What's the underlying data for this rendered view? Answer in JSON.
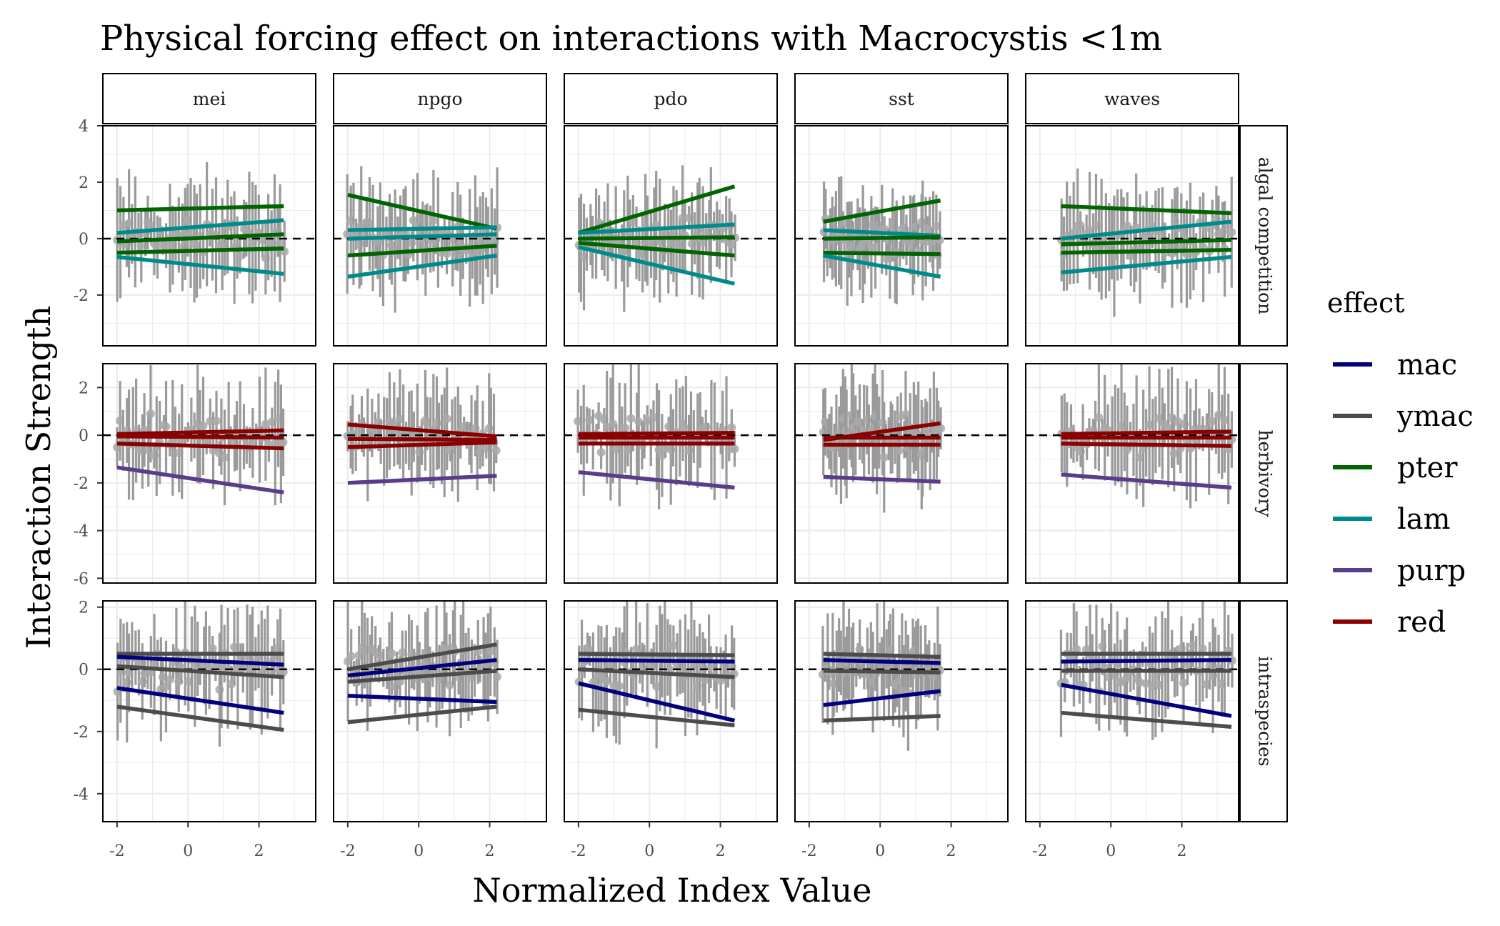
{
  "chart_data": {
    "type": "line",
    "title": "Physical forcing effect on interactions with Macrocystis <1m",
    "xlabel": "Normalized Index Value",
    "ylabel": "Interaction Strength",
    "legend": {
      "title": "effect",
      "placement": "right"
    },
    "series": [
      {
        "name": "mac",
        "color": "#00007f"
      },
      {
        "name": "ymac",
        "color": "#4c4c4c"
      },
      {
        "name": "pter",
        "color": "#006400"
      },
      {
        "name": "lam",
        "color": "#008b8b"
      },
      {
        "name": "purp",
        "color": "#5a3d8a"
      },
      {
        "name": "red",
        "color": "#8b0000"
      }
    ],
    "x_panels": [
      "mei",
      "npgo",
      "pdo",
      "sst",
      "waves"
    ],
    "y_panels": [
      "algal competition",
      "herbivory",
      "intraspecies"
    ],
    "xlim": [
      -2.4,
      3.6
    ],
    "x_ticks": [
      -2,
      0,
      2
    ],
    "x_tick_labels": [
      "-2",
      "0",
      "2"
    ],
    "x_ranges": {
      "mei": [
        -2.0,
        2.7
      ],
      "npgo": [
        -2.0,
        2.2
      ],
      "pdo": [
        -2.0,
        2.4
      ],
      "sst": [
        -1.6,
        1.7
      ],
      "waves": [
        -1.4,
        3.4
      ]
    },
    "rows": [
      {
        "name": "algal competition",
        "ylim": [
          -3.8,
          4.0
        ],
        "y_ticks": [
          -2,
          0,
          2,
          4
        ],
        "y_tick_labels": [
          "-2",
          "0",
          "2",
          "4"
        ],
        "reference_line": 0,
        "lines": {
          "mei": [
            {
              "effect": "pter",
              "y": [
                1.0,
                1.15
              ]
            },
            {
              "effect": "lam",
              "y": [
                0.2,
                0.65
              ]
            },
            {
              "effect": "pter",
              "y": [
                -0.1,
                0.15
              ]
            },
            {
              "effect": "pter",
              "y": [
                -0.5,
                -0.35
              ]
            },
            {
              "effect": "lam",
              "y": [
                -0.65,
                -1.25
              ]
            }
          ],
          "npgo": [
            {
              "effect": "pter",
              "y": [
                1.55,
                0.35
              ]
            },
            {
              "effect": "lam",
              "y": [
                0.3,
                0.4
              ]
            },
            {
              "effect": "lam",
              "y": [
                0.0,
                0.15
              ]
            },
            {
              "effect": "pter",
              "y": [
                -0.6,
                -0.25
              ]
            },
            {
              "effect": "lam",
              "y": [
                -1.35,
                -0.6
              ]
            }
          ],
          "pdo": [
            {
              "effect": "pter",
              "y": [
                0.2,
                1.85
              ]
            },
            {
              "effect": "lam",
              "y": [
                0.2,
                0.5
              ]
            },
            {
              "effect": "pter",
              "y": [
                0.0,
                0.05
              ]
            },
            {
              "effect": "pter",
              "y": [
                -0.15,
                -0.6
              ]
            },
            {
              "effect": "lam",
              "y": [
                -0.3,
                -1.6
              ]
            }
          ],
          "sst": [
            {
              "effect": "pter",
              "y": [
                0.6,
                1.35
              ]
            },
            {
              "effect": "lam",
              "y": [
                0.3,
                0.1
              ]
            },
            {
              "effect": "pter",
              "y": [
                0.0,
                0.05
              ]
            },
            {
              "effect": "pter",
              "y": [
                -0.5,
                -0.55
              ]
            },
            {
              "effect": "lam",
              "y": [
                -0.6,
                -1.35
              ]
            }
          ],
          "waves": [
            {
              "effect": "pter",
              "y": [
                1.15,
                0.9
              ]
            },
            {
              "effect": "lam",
              "y": [
                0.0,
                0.6
              ]
            },
            {
              "effect": "pter",
              "y": [
                -0.2,
                -0.05
              ]
            },
            {
              "effect": "pter",
              "y": [
                -0.5,
                -0.4
              ]
            },
            {
              "effect": "lam",
              "y": [
                -1.2,
                -0.65
              ]
            }
          ]
        },
        "point_cloud": {
          "spread": 0.75,
          "bar_extent": 1.8
        }
      },
      {
        "name": "herbivory",
        "ylim": [
          -6.2,
          3.0
        ],
        "y_ticks": [
          -6,
          -4,
          -2,
          0,
          2
        ],
        "y_tick_labels": [
          "-6",
          "-4",
          "-2",
          "0",
          "2"
        ],
        "reference_line": 0,
        "lines": {
          "mei": [
            {
              "effect": "red",
              "y": [
                0.05,
                0.2
              ]
            },
            {
              "effect": "red",
              "y": [
                -0.05,
                -0.1
              ]
            },
            {
              "effect": "red",
              "y": [
                -0.35,
                -0.55
              ]
            },
            {
              "effect": "purp",
              "y": [
                -1.35,
                -2.4
              ]
            }
          ],
          "npgo": [
            {
              "effect": "red",
              "y": [
                0.45,
                -0.05
              ]
            },
            {
              "effect": "red",
              "y": [
                -0.15,
                -0.2
              ]
            },
            {
              "effect": "red",
              "y": [
                -0.5,
                -0.3
              ]
            },
            {
              "effect": "purp",
              "y": [
                -2.0,
                -1.7
              ]
            }
          ],
          "pdo": [
            {
              "effect": "red",
              "y": [
                0.05,
                0.1
              ]
            },
            {
              "effect": "red",
              "y": [
                -0.1,
                -0.1
              ]
            },
            {
              "effect": "red",
              "y": [
                -0.35,
                -0.35
              ]
            },
            {
              "effect": "purp",
              "y": [
                -1.55,
                -2.2
              ]
            }
          ],
          "sst": [
            {
              "effect": "red",
              "y": [
                -0.2,
                0.5
              ]
            },
            {
              "effect": "red",
              "y": [
                -0.1,
                -0.1
              ]
            },
            {
              "effect": "red",
              "y": [
                -0.4,
                -0.4
              ]
            },
            {
              "effect": "purp",
              "y": [
                -1.75,
                -1.95
              ]
            }
          ],
          "waves": [
            {
              "effect": "red",
              "y": [
                0.05,
                0.15
              ]
            },
            {
              "effect": "red",
              "y": [
                -0.1,
                -0.1
              ]
            },
            {
              "effect": "red",
              "y": [
                -0.35,
                -0.45
              ]
            },
            {
              "effect": "purp",
              "y": [
                -1.65,
                -2.2
              ]
            }
          ]
        },
        "point_cloud": {
          "spread": 0.9,
          "bar_extent": 2.2
        }
      },
      {
        "name": "intraspecies",
        "ylim": [
          -4.9,
          2.2
        ],
        "y_ticks": [
          -4,
          -2,
          0,
          2
        ],
        "y_tick_labels": [
          "-4",
          "-2",
          "0",
          "2"
        ],
        "reference_line": 0,
        "lines": {
          "mei": [
            {
              "effect": "ymac",
              "y": [
                0.5,
                0.5
              ]
            },
            {
              "effect": "mac",
              "y": [
                0.4,
                0.15
              ]
            },
            {
              "effect": "ymac",
              "y": [
                0.1,
                -0.25
              ]
            },
            {
              "effect": "mac",
              "y": [
                -0.6,
                -1.4
              ]
            },
            {
              "effect": "ymac",
              "y": [
                -1.2,
                -1.95
              ]
            }
          ],
          "npgo": [
            {
              "effect": "ymac",
              "y": [
                0.0,
                0.8
              ]
            },
            {
              "effect": "mac",
              "y": [
                -0.2,
                0.3
              ]
            },
            {
              "effect": "ymac",
              "y": [
                -0.4,
                -0.05
              ]
            },
            {
              "effect": "mac",
              "y": [
                -0.85,
                -1.05
              ]
            },
            {
              "effect": "ymac",
              "y": [
                -1.7,
                -1.2
              ]
            }
          ],
          "pdo": [
            {
              "effect": "ymac",
              "y": [
                0.5,
                0.45
              ]
            },
            {
              "effect": "mac",
              "y": [
                0.3,
                0.25
              ]
            },
            {
              "effect": "ymac",
              "y": [
                0.0,
                -0.25
              ]
            },
            {
              "effect": "mac",
              "y": [
                -0.45,
                -1.65
              ]
            },
            {
              "effect": "ymac",
              "y": [
                -1.3,
                -1.8
              ]
            }
          ],
          "sst": [
            {
              "effect": "ymac",
              "y": [
                0.5,
                0.4
              ]
            },
            {
              "effect": "mac",
              "y": [
                0.3,
                0.2
              ]
            },
            {
              "effect": "ymac",
              "y": [
                -0.05,
                -0.1
              ]
            },
            {
              "effect": "mac",
              "y": [
                -1.15,
                -0.7
              ]
            },
            {
              "effect": "ymac",
              "y": [
                -1.65,
                -1.5
              ]
            }
          ],
          "waves": [
            {
              "effect": "ymac",
              "y": [
                0.5,
                0.5
              ]
            },
            {
              "effect": "mac",
              "y": [
                0.25,
                0.3
              ]
            },
            {
              "effect": "ymac",
              "y": [
                -0.05,
                -0.05
              ]
            },
            {
              "effect": "mac",
              "y": [
                -0.5,
                -1.5
              ]
            },
            {
              "effect": "ymac",
              "y": [
                -1.4,
                -1.85
              ]
            }
          ]
        },
        "point_cloud": {
          "spread": 0.8,
          "bar_extent": 1.6
        }
      }
    ]
  }
}
